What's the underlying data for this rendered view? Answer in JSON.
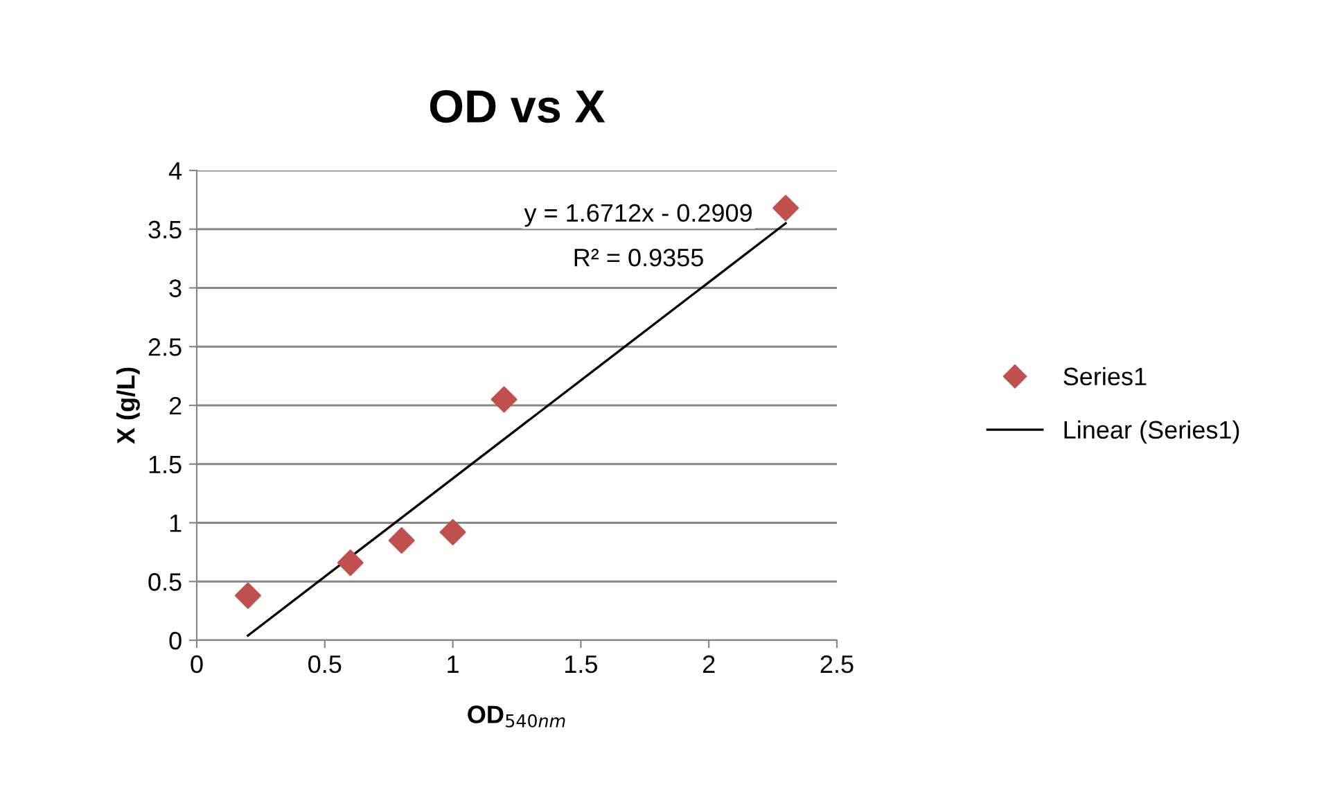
{
  "chart_data": {
    "type": "scatter",
    "title": "OD vs X",
    "xlabel": "OD$_{540nm}$",
    "ylabel": "X (g/L)",
    "xlim": [
      0,
      2.5
    ],
    "xticks": [
      0,
      0.5,
      1,
      1.5,
      2,
      2.5
    ],
    "ylim": [
      0,
      4
    ],
    "yticks": [
      0,
      0.5,
      1,
      1.5,
      2,
      2.5,
      3,
      3.5,
      4
    ],
    "grid": "y",
    "legend": "right",
    "marker": "diamond",
    "series": [
      {
        "name": "Series1",
        "color": "#c0504d",
        "x": [
          0.2,
          0.6,
          0.8,
          1.0,
          1.2,
          2.3
        ],
        "values": [
          0.38,
          0.66,
          0.85,
          0.92,
          2.05,
          3.68
        ]
      },
      {
        "name": "Linear (Series1)",
        "type": "line",
        "color": "#000000",
        "marker": "none",
        "line_style": "solid",
        "x": [
          0.2,
          2.3
        ],
        "values": [
          0.04,
          3.55
        ]
      }
    ],
    "annotations": [
      "y = 1.6712x - 0.2909",
      "R² = 0.9355"
    ]
  }
}
